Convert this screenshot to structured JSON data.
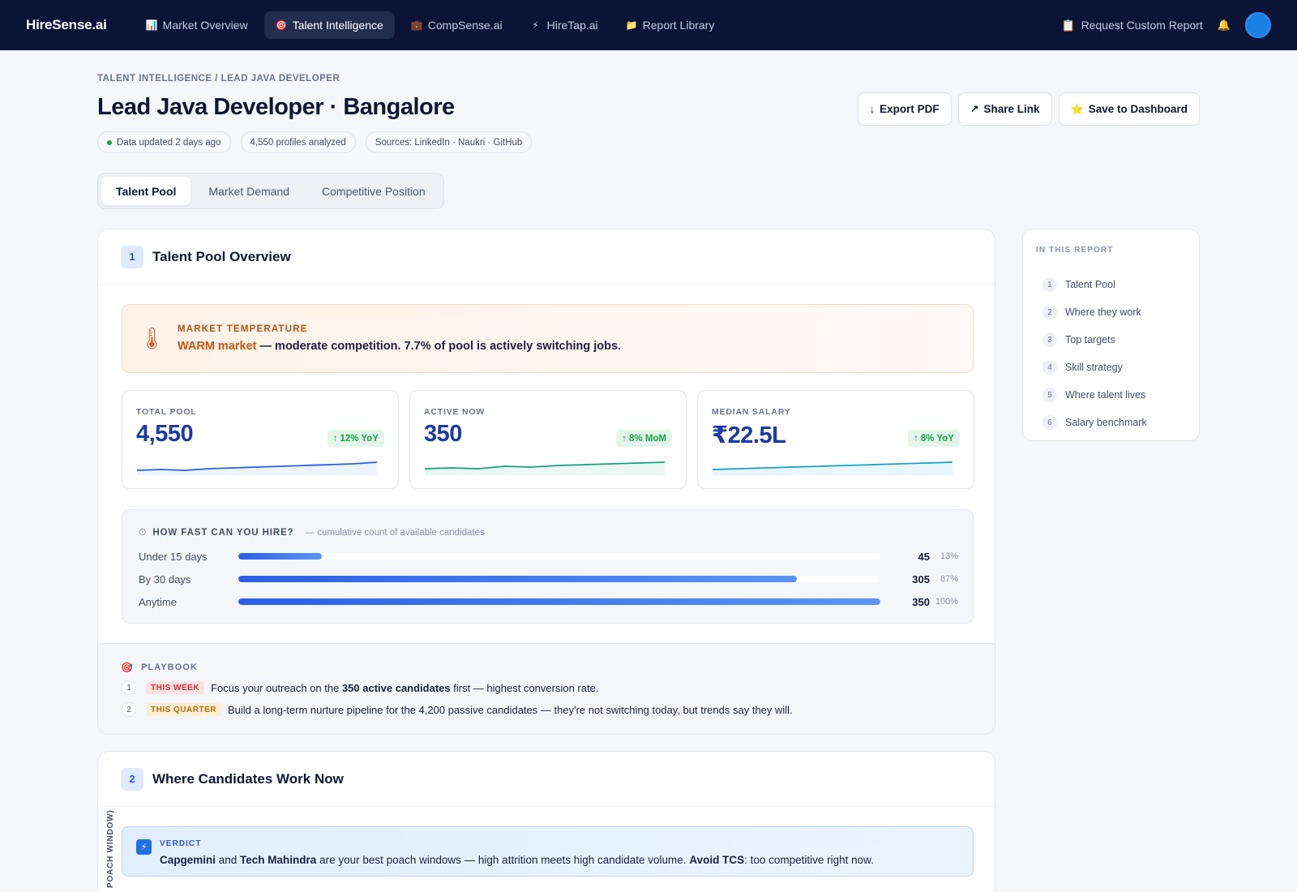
{
  "nav": {
    "brand": "HireSense.ai",
    "items": [
      {
        "label": "Market Overview",
        "icon": "📊"
      },
      {
        "label": "Talent Intelligence",
        "icon": "🎯"
      },
      {
        "label": "CompSense.ai",
        "icon": "💼"
      },
      {
        "label": "HireTap.ai",
        "icon": "⚡"
      },
      {
        "label": "Report Library",
        "icon": "📁"
      }
    ],
    "request_label": "Request Custom Report",
    "request_icon": "📋",
    "bell_icon": "🔔"
  },
  "header": {
    "breadcrumb": "TALENT INTELLIGENCE / LEAD JAVA DEVELOPER",
    "title": "Lead Java Developer · Bangalore",
    "chips": [
      "Data updated 2 days ago",
      "4,550 profiles analyzed",
      "Sources: LinkedIn · Naukri · GitHub"
    ],
    "actions": [
      {
        "label": "Export PDF",
        "icon": "↓"
      },
      {
        "label": "Share Link",
        "icon": "↗"
      },
      {
        "label": "Save to Dashboard",
        "icon": "⭐"
      }
    ]
  },
  "tabs": [
    "Talent Pool",
    "Market Demand",
    "Competitive Position"
  ],
  "section1": {
    "num": "1",
    "title": "Talent Pool Overview",
    "temperature": {
      "label": "MARKET TEMPERATURE",
      "highlight": "WARM market",
      "text": " — moderate competition. 7.7% of pool is actively switching jobs.",
      "icon": "🌡"
    },
    "stats": [
      {
        "label": "TOTAL POOL",
        "value": "4,550",
        "badge": "12% YoY",
        "color": "#2a5ee8",
        "fill": "#eef3fe",
        "trend": [
          22,
          21,
          22,
          20,
          19,
          18,
          17,
          16,
          15,
          14,
          12
        ]
      },
      {
        "label": "ACTIVE NOW",
        "value": "350",
        "badge": "8% MoM",
        "color": "#16a37a",
        "fill": "#eaf7f2",
        "trend": [
          20,
          19,
          20,
          17,
          18,
          16,
          15,
          14,
          13,
          12
        ]
      },
      {
        "label": "MEDIAN SALARY",
        "value": "₹22.5L",
        "badge": "8% YoY",
        "color": "#1aa0c8",
        "fill": "#e8f5fb",
        "trend": [
          21,
          20,
          19,
          18,
          17,
          16,
          15,
          14,
          13,
          12
        ]
      }
    ],
    "hire": {
      "icon": "⏱",
      "title": "HOW FAST CAN YOU HIRE?",
      "subtitle": "— cumulative count of available candidates",
      "rows": [
        {
          "label": "Under 15 days",
          "count": "45",
          "pct": "13%",
          "fraction": 0.13
        },
        {
          "label": "By 30 days",
          "count": "305",
          "pct": "87%",
          "fraction": 0.87
        },
        {
          "label": "Anytime",
          "count": "350",
          "pct": "100%",
          "fraction": 1.0
        }
      ]
    },
    "playbook": {
      "icon": "🎯",
      "title": "PLAYBOOK",
      "items": [
        {
          "num": "1",
          "tag": "THIS WEEK",
          "pre": "Focus your outreach on the ",
          "bold": "350 active candidates",
          "post": " first — highest conversion rate."
        },
        {
          "num": "2",
          "tag": "THIS QUARTER",
          "pre": "Build a long-term nurture pipeline for the 4,200 passive candidates — they're not switching today, but trends say they will.",
          "bold": "",
          "post": ""
        }
      ]
    }
  },
  "section2": {
    "num": "2",
    "title": "Where Candidates Work Now",
    "vertical_label": "POACH WINDOW)",
    "verdict": {
      "label": "VERDICT",
      "icon": "⚡",
      "b1": "Capgemini",
      "t1": " and ",
      "b2": "Tech Mahindra",
      "t2": " are your best poach windows — high attrition meets high candidate volume. ",
      "b3": "Avoid TCS",
      "t3": ": too competitive right now."
    }
  },
  "toc": {
    "title": "IN THIS REPORT",
    "items": [
      "Talent Pool",
      "Where they work",
      "Top targets",
      "Skill strategy",
      "Where talent lives",
      "Salary benchmark"
    ]
  }
}
